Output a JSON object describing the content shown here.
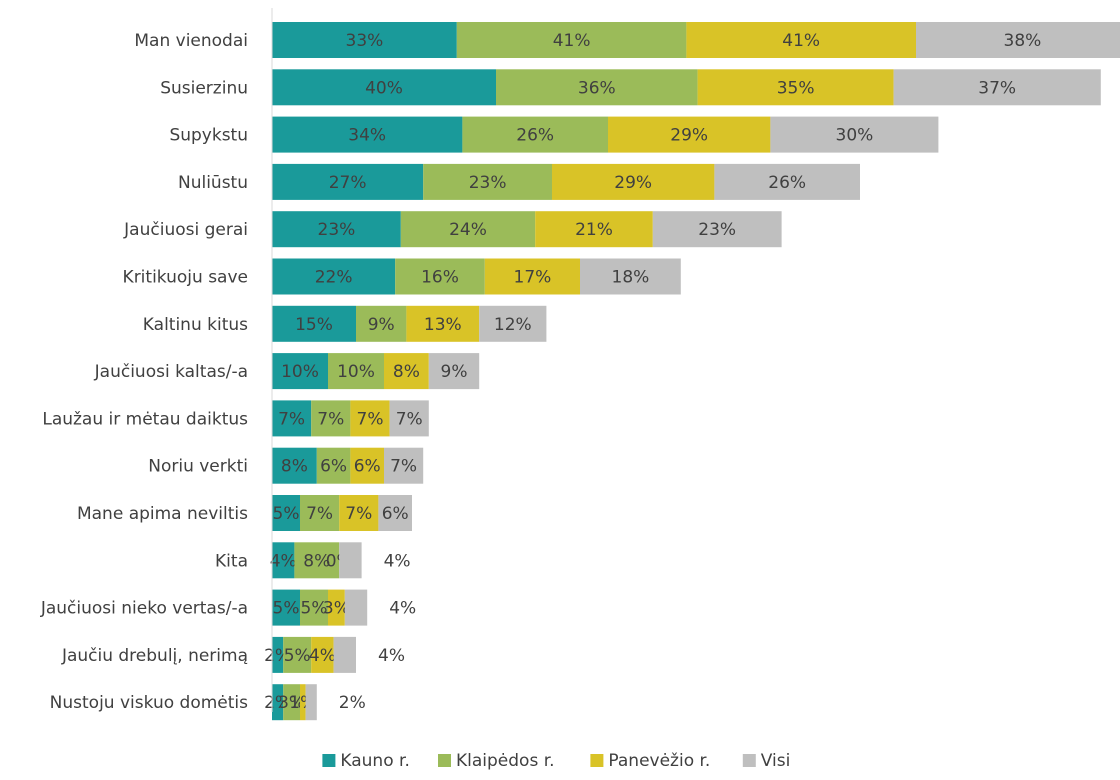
{
  "chart_data": {
    "type": "bar",
    "orientation": "horizontal",
    "stacked": true,
    "categories": [
      "Man vienodai",
      "Susierzinu",
      "Supykstu",
      "Nuliūstu",
      "Jaučiuosi gerai",
      "Kritikuoju save",
      "Kaltinu kitus",
      "Jaučiuosi kaltas/-a",
      "Laužau ir mėtau daiktus",
      "Noriu verkti",
      "Mane apima neviltis",
      "Kita",
      "Jaučiuosi nieko vertas/-a",
      "Jaučiu drebulį, nerimą",
      "Nustoju viskuo domėtis"
    ],
    "series": [
      {
        "name": "Kauno r.",
        "color": "#1a9a9a",
        "values": [
          33,
          40,
          34,
          27,
          23,
          22,
          15,
          10,
          7,
          8,
          5,
          4,
          5,
          2,
          2
        ]
      },
      {
        "name": "Klaipėdos r.",
        "color": "#9bbb59",
        "values": [
          41,
          36,
          26,
          23,
          24,
          16,
          9,
          10,
          7,
          6,
          7,
          8,
          5,
          5,
          3
        ]
      },
      {
        "name": "Panevėžio r.",
        "color": "#d9c327",
        "values": [
          41,
          35,
          29,
          29,
          21,
          17,
          13,
          8,
          7,
          6,
          7,
          0,
          3,
          4,
          1
        ]
      },
      {
        "name": "Visi",
        "color": "#bfbfbf",
        "values": [
          38,
          37,
          30,
          26,
          23,
          18,
          12,
          9,
          7,
          7,
          6,
          4,
          4,
          4,
          2
        ]
      }
    ],
    "value_suffix": "%",
    "grid": false,
    "legend_position": "bottom",
    "label_color": "#404040",
    "axis_color": "#d9d9d9"
  }
}
